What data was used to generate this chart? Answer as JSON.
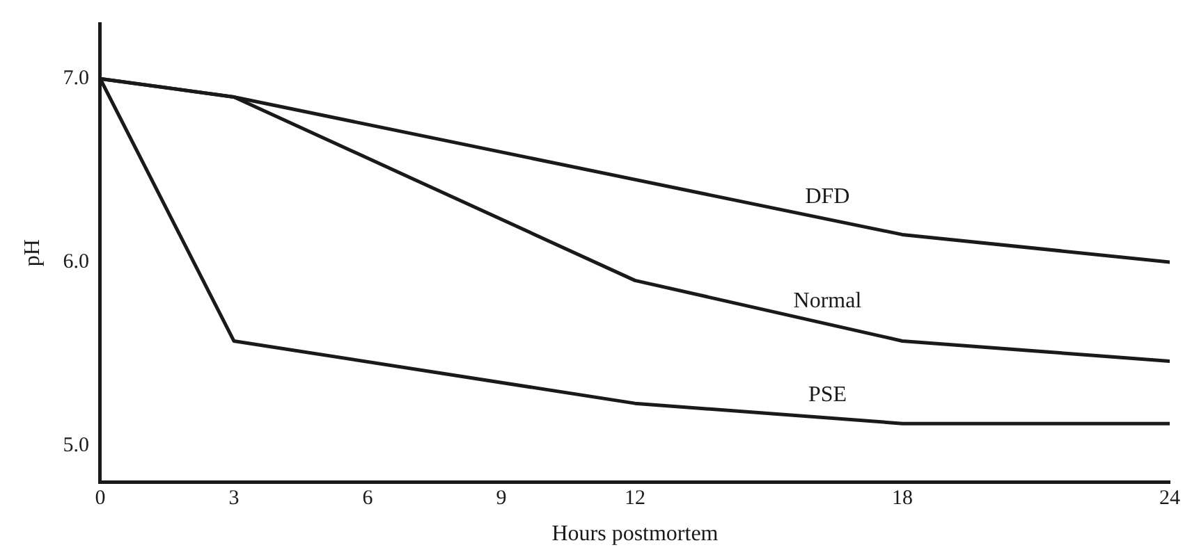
{
  "chart_data": {
    "type": "line",
    "xlabel": "Hours postmortem",
    "ylabel": "pH",
    "x": [
      0,
      3,
      12,
      18,
      24
    ],
    "series": [
      {
        "name": "DFD",
        "color": "#1a1a1a",
        "x": [
          0,
          3,
          18,
          24
        ],
        "values": [
          7.0,
          6.9,
          6.15,
          6.0
        ]
      },
      {
        "name": "Normal",
        "color": "#1a1a1a",
        "values": [
          7.0,
          6.9,
          5.9,
          5.57,
          5.46
        ]
      },
      {
        "name": "PSE",
        "color": "#1a1a1a",
        "values": [
          7.0,
          5.57,
          5.23,
          5.12,
          5.12
        ]
      }
    ],
    "xlim": [
      0,
      24
    ],
    "xticks": [
      0,
      3,
      6,
      9,
      12,
      18,
      24
    ],
    "ylim": [
      4.8,
      7.3
    ],
    "yticks": [
      {
        "value": 5,
        "label": "5.0"
      },
      {
        "value": 6,
        "label": "6.0"
      },
      {
        "value": 7,
        "label": "7.0"
      }
    ],
    "grid": false,
    "legend": false,
    "marker": "none",
    "line_style": "solid"
  }
}
